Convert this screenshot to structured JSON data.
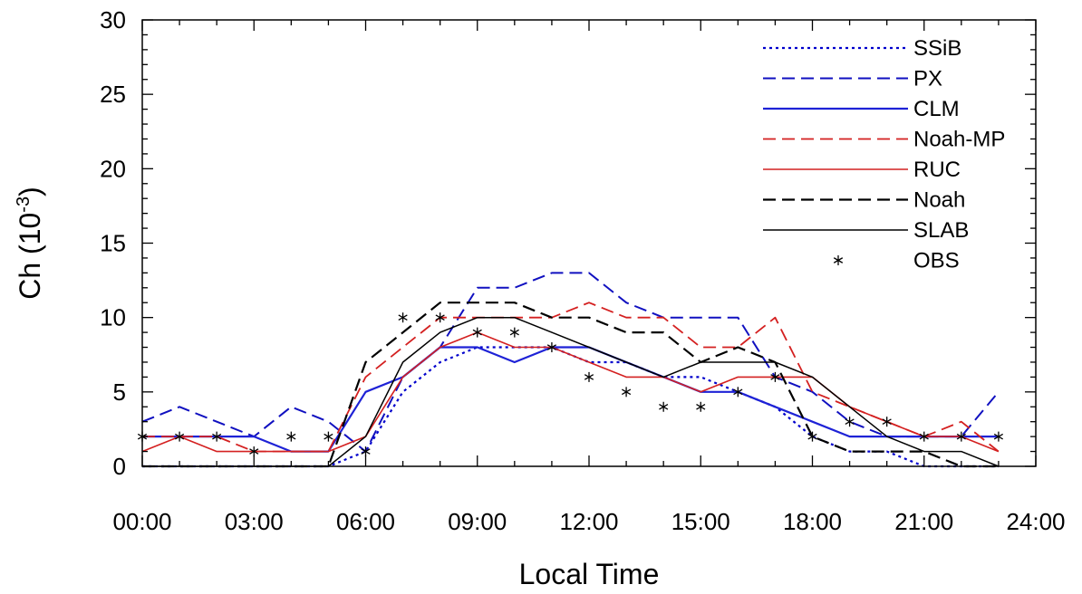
{
  "chart_data": {
    "type": "line",
    "xlabel": "Local Time",
    "ylabel_main": "Ch (10",
    "ylabel_sup": "-3",
    "ylabel_close": ")",
    "xlim": [
      0,
      24
    ],
    "ylim": [
      0,
      30
    ],
    "x_ticks": [
      0,
      3,
      6,
      9,
      12,
      15,
      18,
      21,
      24
    ],
    "x_tick_labels": [
      "00:00",
      "03:00",
      "06:00",
      "09:00",
      "12:00",
      "15:00",
      "18:00",
      "21:00",
      "24:00"
    ],
    "y_ticks": [
      0,
      5,
      10,
      15,
      20,
      25,
      30
    ],
    "y_tick_labels": [
      "0",
      "5",
      "10",
      "15",
      "20",
      "25",
      "30"
    ],
    "grid": false,
    "legend_position": "top-right",
    "x": [
      0,
      1,
      2,
      3,
      4,
      5,
      6,
      7,
      8,
      9,
      10,
      11,
      12,
      13,
      14,
      15,
      16,
      17,
      18,
      19,
      20,
      21,
      22,
      23
    ],
    "series": [
      {
        "name": "SSiB",
        "color": "#0000cc",
        "dash": "dotted",
        "width": 2.2,
        "values": [
          0,
          0,
          0,
          0,
          0,
          0,
          1,
          5,
          7,
          8,
          8,
          8,
          7,
          7,
          6,
          6,
          5,
          4,
          2,
          1,
          1,
          0,
          0,
          0
        ]
      },
      {
        "name": "PX",
        "color": "#1010c0",
        "dash": "dashed",
        "width": 2,
        "values": [
          3,
          4,
          3,
          2,
          4,
          3,
          1,
          6,
          8,
          12,
          12,
          13,
          13,
          11,
          10,
          10,
          10,
          6,
          5,
          3,
          2,
          2,
          2,
          5
        ]
      },
      {
        "name": "CLM",
        "color": "#1e22d6",
        "dash": "solid",
        "width": 2.2,
        "values": [
          2,
          2,
          2,
          2,
          1,
          1,
          5,
          6,
          8,
          8,
          7,
          8,
          8,
          7,
          6,
          5,
          5,
          4,
          3,
          2,
          2,
          2,
          2,
          2
        ]
      },
      {
        "name": "Noah-MP",
        "color": "#d42020",
        "dash": "dashed",
        "width": 1.8,
        "values": [
          2,
          2,
          2,
          1,
          1,
          1,
          6,
          8,
          10,
          10,
          10,
          10,
          11,
          10,
          10,
          8,
          8,
          10,
          5,
          4,
          3,
          2,
          3,
          1
        ]
      },
      {
        "name": "RUC",
        "color": "#d42020",
        "dash": "solid",
        "width": 1.6,
        "values": [
          1,
          2,
          1,
          1,
          1,
          1,
          2,
          6,
          8,
          9,
          8,
          8,
          7,
          6,
          6,
          5,
          6,
          6,
          6,
          4,
          3,
          2,
          2,
          1
        ]
      },
      {
        "name": "Noah",
        "color": "#000000",
        "dash": "dashed",
        "width": 2.2,
        "values": [
          0,
          0,
          0,
          0,
          0,
          0,
          7,
          9,
          11,
          11,
          11,
          10,
          10,
          9,
          9,
          7,
          8,
          7,
          2,
          1,
          1,
          1,
          0,
          0
        ]
      },
      {
        "name": "SLAB",
        "color": "#000000",
        "dash": "solid",
        "width": 1.5,
        "values": [
          0,
          0,
          0,
          0,
          0,
          0,
          2,
          7,
          9,
          10,
          10,
          9,
          8,
          7,
          6,
          7,
          7,
          7,
          6,
          4,
          2,
          1,
          1,
          0
        ]
      }
    ],
    "obs": {
      "name": "OBS",
      "color": "#000000",
      "x": [
        0,
        1,
        2,
        3,
        4,
        5,
        6,
        7,
        8,
        9,
        10,
        11,
        12,
        13,
        14,
        15,
        16,
        17,
        18,
        19,
        20,
        21,
        22,
        23
      ],
      "values": [
        2,
        2,
        2,
        1,
        2,
        2,
        1,
        10,
        10,
        9,
        9,
        8,
        6,
        5,
        4,
        4,
        5,
        6,
        2,
        3,
        3,
        2,
        2,
        2
      ]
    }
  }
}
